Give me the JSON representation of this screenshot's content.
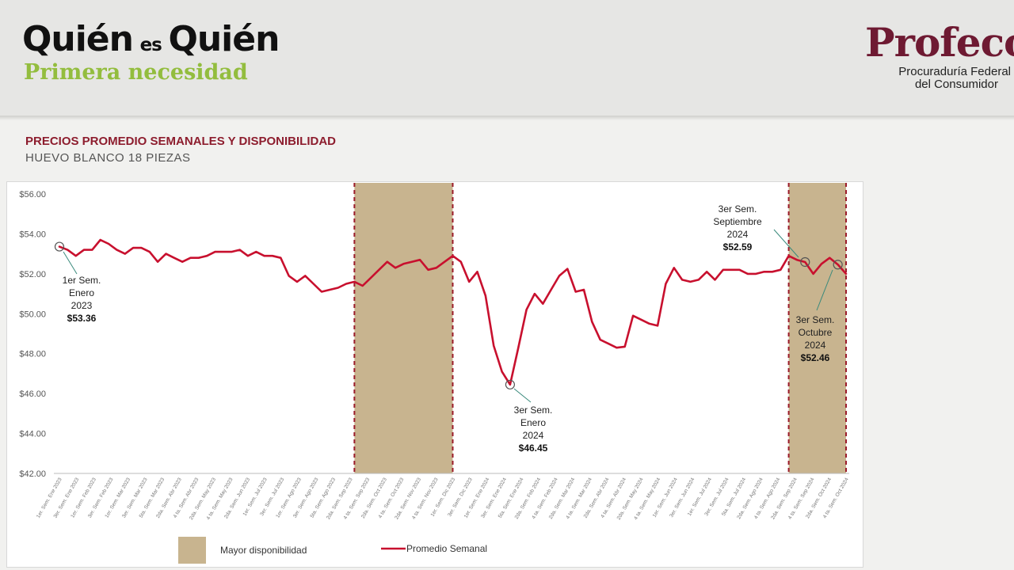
{
  "header": {
    "brand_word1": "Quién",
    "brand_word2": "es",
    "brand_word3": "Quién",
    "brand_subtitle": "Primera necesidad",
    "logo_name": "Profeco",
    "logo_line1": "Procuraduría Federal",
    "logo_line2": "del Consumidor"
  },
  "colors": {
    "line": "#c8102e",
    "band": "#c8b48f",
    "title": "#8d1d2e",
    "brand_green": "#93bd3e",
    "profeco": "#6e1a32"
  },
  "chart_data": {
    "type": "line",
    "title": "PRECIOS PROMEDIO SEMANALES Y DISPONIBILIDAD",
    "subtitle": "HUEVO BLANCO 18 PIEZAS",
    "y_ticks": [
      "$56.00",
      "$54.00",
      "$52.00",
      "$50.00",
      "$48.00",
      "$46.00",
      "$44.00",
      "$42.00"
    ],
    "ylim": [
      42,
      56
    ],
    "x_tick_labels": [
      "1er. Sem. Ene 2023",
      "3er. Sem. Ene 2023",
      "1er. Sem. Feb 2023",
      "3er. Sem. Feb 2023",
      "1er. Sem. Mar 2023",
      "3er. Sem. Mar 2023",
      "5ta. Sem. Mar 2023",
      "2da. Sem. Abr 2023",
      "4 ta. Sem. Abr 2023",
      "2da. Sem. May 2023",
      "4 ta. Sem. May 2023",
      "2da. Sem. Jun 2023",
      "1er. Sem. Jul 2023",
      "3er. Sem. Jul 2023",
      "1er. Sem. Ago 2023",
      "3er. Sem. Ago 2023",
      "5ta. Sem. Ago 2023",
      "2da. Sem. Sep 2023",
      "4 ta. Sem. Sep 2023",
      "2da. Sem. Oct 2023",
      "4 ta. Sem. Oct 2023",
      "2da. Sem. Nov 2023",
      "4 ta. Sem. Nov 2023",
      "1er. Sem. Dic 2023",
      "3er. Sem. Dic 2023",
      "1er. Sem. Ene 2024",
      "3er. Sem. Ene 2024",
      "5ta. Sem. Ene 2024",
      "2da. Sem. Feb 2024",
      "4 ta. Sem. Feb 2024",
      "2da. Sem. Mar 2024",
      "4 ta. Sem. Mar 2024",
      "2da. Sem. Abr 2024",
      "4 ta. Sem. Abr 2024",
      "2da. Sem. May 2024",
      "4 ta. Sem. May 2024",
      "1er. Sem. Jun 2024",
      "3er. Sem. Jun 2024",
      "1er. Sem. Jul 2024",
      "3er. Sem. Jul 2024",
      "5ta. Sem. Jul 2024",
      "2da. Sem. Ago 2024",
      "4 ta. Sem. Ago 2024",
      "2da. Sem. Sep 2024",
      "4 ta. Sem. Sep 2024",
      "2da. Sem. Oct 2024",
      "4 ta. Sem. Oct 2024"
    ],
    "series": [
      {
        "name": "Promedio Semanal",
        "values": [
          53.36,
          53.2,
          52.9,
          53.2,
          53.2,
          53.7,
          53.5,
          53.2,
          53.0,
          53.3,
          53.3,
          53.1,
          52.6,
          53.0,
          52.8,
          52.6,
          52.8,
          52.8,
          52.9,
          53.1,
          53.1,
          53.1,
          53.2,
          52.9,
          53.1,
          52.9,
          52.9,
          52.8,
          51.9,
          51.6,
          51.9,
          51.5,
          51.1,
          51.2,
          51.3,
          51.5,
          51.6,
          51.4,
          51.8,
          52.2,
          52.6,
          52.3,
          52.5,
          52.6,
          52.7,
          52.2,
          52.3,
          52.6,
          52.9,
          52.6,
          51.6,
          52.1,
          50.9,
          48.4,
          47.1,
          46.45,
          48.3,
          50.2,
          51.0,
          50.5,
          51.2,
          51.9,
          52.25,
          51.1,
          51.2,
          49.6,
          48.7,
          48.5,
          48.3,
          48.35,
          49.9,
          49.7,
          49.5,
          49.4,
          51.5,
          52.3,
          51.7,
          51.6,
          51.7,
          52.1,
          51.7,
          52.2,
          52.2,
          52.2,
          52.0,
          52.0,
          52.1,
          52.1,
          52.2,
          52.9,
          52.7,
          52.59,
          52.0,
          52.5,
          52.8,
          52.46,
          52.0
        ]
      }
    ],
    "bands": [
      {
        "start_index": 36,
        "end_index": 48
      },
      {
        "start_index": 89,
        "end_index": 96
      }
    ],
    "annotations": [
      {
        "index": 0,
        "lines": [
          "1er Sem.",
          "Enero",
          "2023"
        ],
        "price": "$53.36"
      },
      {
        "index": 55,
        "lines": [
          "3er Sem.",
          "Enero",
          "2024"
        ],
        "price": "$46.45"
      },
      {
        "index": 91,
        "lines": [
          "3er Sem.",
          "Septiembre",
          "2024"
        ],
        "price": "$52.59"
      },
      {
        "index": 95,
        "lines": [
          "3er Sem.",
          "Octubre",
          "2024"
        ],
        "price": "$52.46"
      }
    ],
    "legend": {
      "band_label": "Mayor disponibilidad",
      "line_label": "Promedio Semanal",
      "position": "bottom"
    }
  }
}
